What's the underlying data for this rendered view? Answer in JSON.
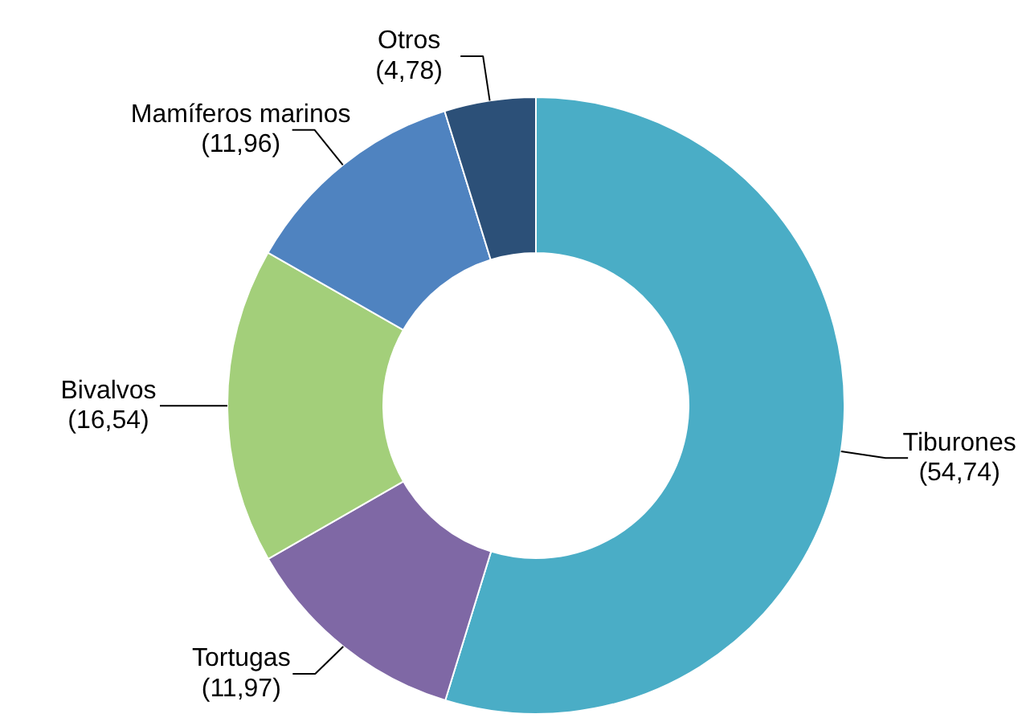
{
  "chart_data": {
    "type": "donut",
    "categories": [
      "Tiburones",
      "Tortugas",
      "Bivalvos",
      "Mamíferos marinos",
      "Otros"
    ],
    "values": [
      54.74,
      11.97,
      16.54,
      11.96,
      4.78
    ],
    "value_labels": [
      "(54,74)",
      "(11,97)",
      "(16,54)",
      "(11,96)",
      "(4,78)"
    ],
    "colors": [
      "#4aadc6",
      "#7f68a5",
      "#a3cf7a",
      "#4f83c0",
      "#2c5078"
    ]
  }
}
